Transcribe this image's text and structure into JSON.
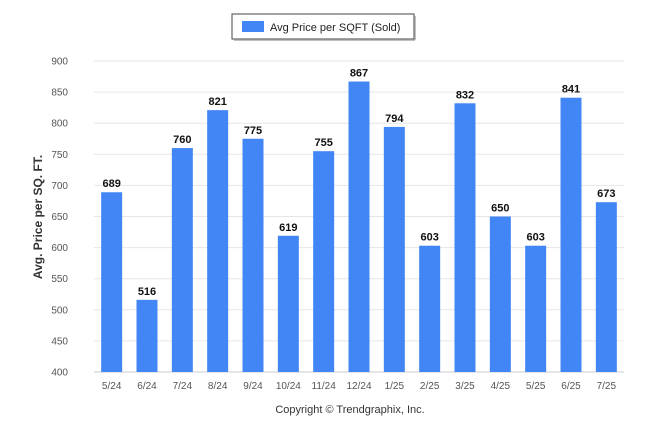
{
  "chart_data": {
    "type": "bar",
    "categories": [
      "5/24",
      "6/24",
      "7/24",
      "8/24",
      "9/24",
      "10/24",
      "11/24",
      "12/24",
      "1/25",
      "2/25",
      "3/25",
      "4/25",
      "5/25",
      "6/25",
      "7/25"
    ],
    "series": [
      {
        "name": "Avg Price per SQFT (Sold)",
        "values": [
          689,
          516,
          760,
          821,
          775,
          619,
          755,
          867,
          794,
          603,
          832,
          650,
          603,
          841,
          673
        ]
      }
    ],
    "xlabel": "",
    "ylabel": "Avg. Price per SQ. FT.",
    "ylim": [
      400,
      900
    ],
    "yticks": [
      400,
      450,
      500,
      550,
      600,
      650,
      700,
      750,
      800,
      850,
      900
    ],
    "grid": true,
    "legend": "top-center",
    "bar_color": "#4285f4",
    "data_labels": true
  },
  "footer": {
    "copyright": "Copyright © Trendgraphix, Inc."
  }
}
